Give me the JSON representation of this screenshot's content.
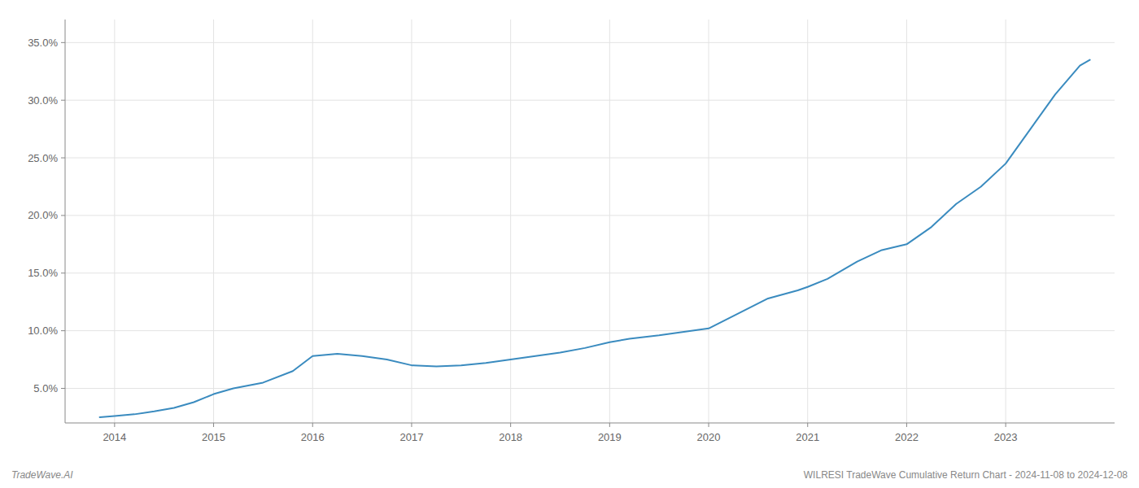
{
  "chart_data": {
    "type": "line",
    "x": [
      2013.85,
      2014.0,
      2014.2,
      2014.4,
      2014.6,
      2014.8,
      2015.0,
      2015.2,
      2015.5,
      2015.8,
      2016.0,
      2016.25,
      2016.5,
      2016.75,
      2017.0,
      2017.25,
      2017.5,
      2017.75,
      2018.0,
      2018.25,
      2018.5,
      2018.75,
      2019.0,
      2019.2,
      2019.5,
      2019.75,
      2020.0,
      2020.3,
      2020.6,
      2020.9,
      2021.0,
      2021.2,
      2021.5,
      2021.75,
      2022.0,
      2022.25,
      2022.5,
      2022.75,
      2023.0,
      2023.25,
      2023.5,
      2023.75,
      2023.85
    ],
    "values": [
      2.5,
      2.6,
      2.75,
      3.0,
      3.3,
      3.8,
      4.5,
      5.0,
      5.5,
      6.5,
      7.8,
      8.0,
      7.8,
      7.5,
      7.0,
      6.9,
      7.0,
      7.2,
      7.5,
      7.8,
      8.1,
      8.5,
      9.0,
      9.3,
      9.6,
      9.9,
      10.2,
      11.5,
      12.8,
      13.5,
      13.8,
      14.5,
      16.0,
      17.0,
      17.5,
      19.0,
      21.0,
      22.5,
      24.5,
      27.5,
      30.5,
      33.0,
      33.5
    ],
    "color": "#3a8bbf",
    "xlim": [
      2013.5,
      2024.1
    ],
    "ylim": [
      2.0,
      37.0
    ],
    "xticks": [
      2014,
      2015,
      2016,
      2017,
      2018,
      2019,
      2020,
      2021,
      2022,
      2023
    ],
    "yticks": [
      {
        "value": 5,
        "label": "5.0%"
      },
      {
        "value": 10,
        "label": "10.0%"
      },
      {
        "value": 15,
        "label": "15.0%"
      },
      {
        "value": 20,
        "label": "20.0%"
      },
      {
        "value": 25,
        "label": "25.0%"
      },
      {
        "value": 30,
        "label": "30.0%"
      },
      {
        "value": 35,
        "label": "35.0%"
      }
    ],
    "grid": true,
    "annotations": [
      "TradeWave.AI",
      "WILRESI TradeWave Cumulative Return Chart - 2024-11-08 to 2024-12-08"
    ]
  }
}
